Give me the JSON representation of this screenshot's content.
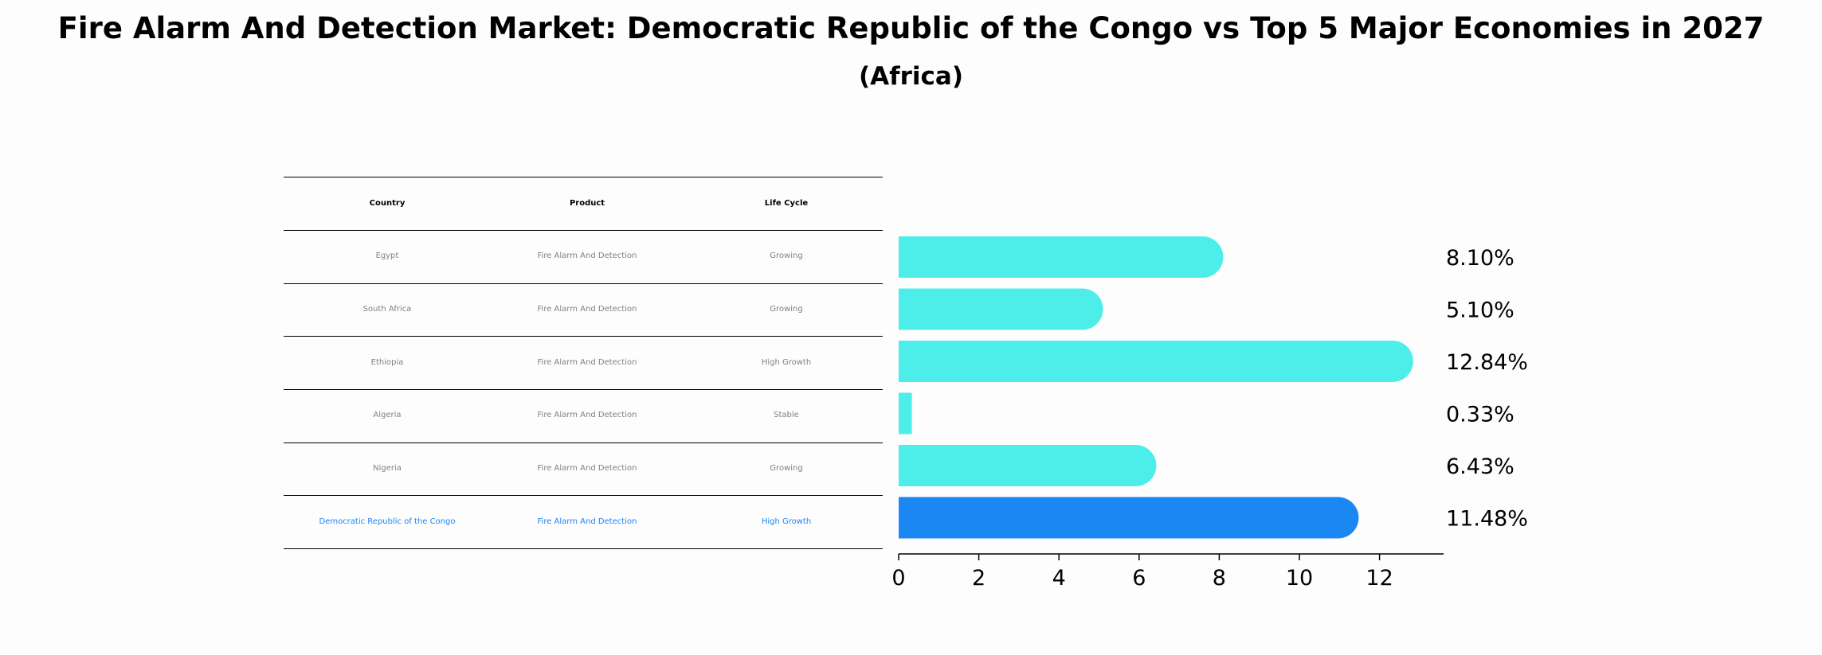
{
  "title": "Fire Alarm And Detection Market: Democratic Republic of the Congo vs Top 5 Major Economies in 2027",
  "subtitle": "(Africa)",
  "table": {
    "headers": [
      "Country",
      "Product",
      "Life Cycle"
    ],
    "rows": [
      [
        "Egypt",
        "Fire Alarm And Detection",
        "Growing"
      ],
      [
        "South Africa",
        "Fire Alarm And Detection",
        "Growing"
      ],
      [
        "Ethiopia",
        "Fire Alarm And Detection",
        "High Growth"
      ],
      [
        "Algeria",
        "Fire Alarm And Detection",
        "Stable"
      ],
      [
        "Nigeria",
        "Fire Alarm And Detection",
        "Growing"
      ],
      [
        "Democratic Republic of the Congo",
        "Fire Alarm And Detection",
        "High Growth"
      ]
    ],
    "highlight_row": 5
  },
  "chart_data": {
    "type": "bar",
    "orientation": "horizontal",
    "categories": [
      "Egypt",
      "South Africa",
      "Ethiopia",
      "Algeria",
      "Nigeria",
      "Democratic Republic of the Congo"
    ],
    "values": [
      8.1,
      5.1,
      12.84,
      0.33,
      6.43,
      11.48
    ],
    "value_labels": [
      "8.10%",
      "5.10%",
      "12.84%",
      "0.33%",
      "6.43%",
      "11.48%"
    ],
    "xticks": [
      0,
      2,
      4,
      6,
      8,
      10,
      12
    ],
    "xlim": [
      0,
      13.5
    ],
    "highlight_index": 5,
    "colors": {
      "bar": "#4deeea",
      "highlight": "#1a87f3",
      "text": "#000000"
    }
  }
}
